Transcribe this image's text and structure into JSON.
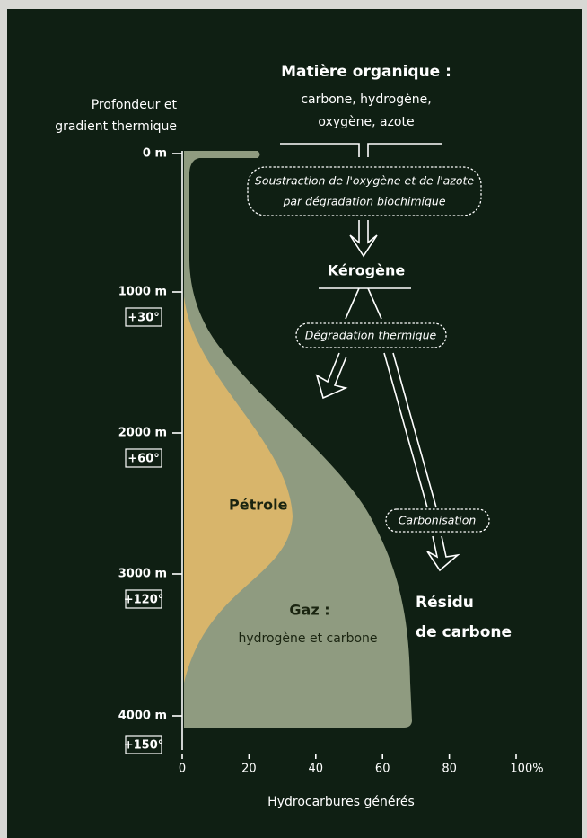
{
  "header": {
    "title": "Matière organique :",
    "lines": [
      "carbone, hydrogène,",
      "oxygène, azote"
    ]
  },
  "y_axis": {
    "title": [
      "Profondeur et",
      "gradient thermique"
    ],
    "depths": [
      {
        "label": "0 m"
      },
      {
        "label": "1000 m",
        "temp": "+30°"
      },
      {
        "label": "2000 m",
        "temp": "+60°"
      },
      {
        "label": "3000 m",
        "temp": "+120°"
      },
      {
        "label": "4000 m",
        "temp": "+150°"
      }
    ]
  },
  "x_axis": {
    "title": "Hydrocarbures générés",
    "ticks": [
      "0",
      "20",
      "40",
      "60",
      "80",
      "100%"
    ]
  },
  "process": {
    "step1": [
      "Soustraction de l'oxygène et de l'azote",
      "par dégradation biochimique"
    ],
    "kerogen": "Kérogène",
    "step2": "Dégradation thermique",
    "step3": "Carbonisation",
    "residue": [
      "Résidu",
      "de carbone"
    ]
  },
  "areas": {
    "oil": "Pétrole",
    "gas_title": "Gaz :",
    "gas_text": "hydrogène et carbone"
  }
}
